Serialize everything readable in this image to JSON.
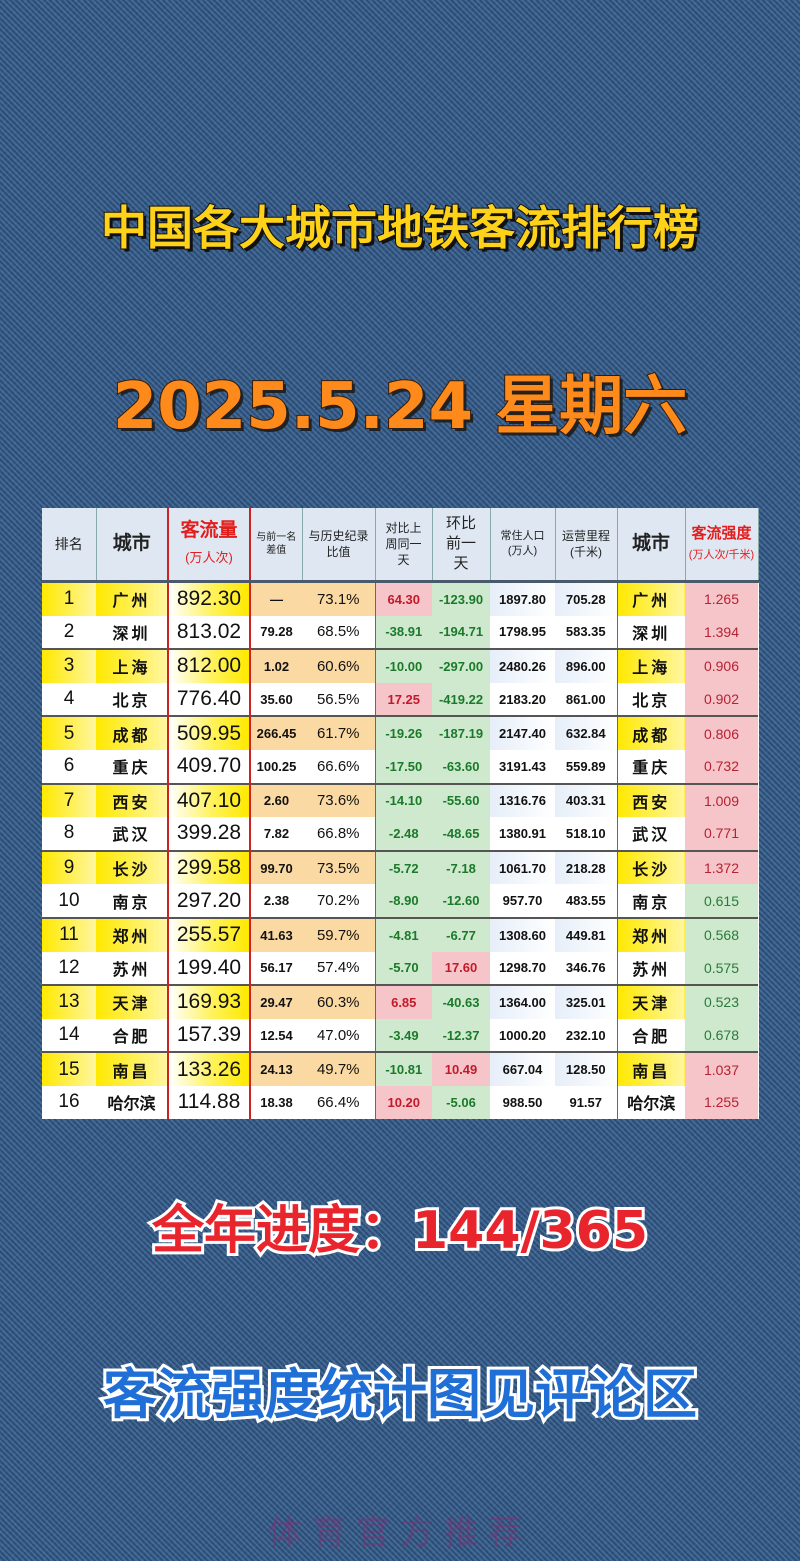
{
  "title": "中国各大城市地铁客流排行榜",
  "date": "2025.5.24 星期六",
  "table": {
    "headers": {
      "rank": "排名",
      "city": "城市",
      "flow": "客流量",
      "flow_unit": "(万人次)",
      "diff": "与前一名差值",
      "ratio": "与历史纪录比值",
      "wow": "对比上周同一天",
      "dod": "环比前一天",
      "pop": "常住人口(万人)",
      "length": "运营里程(千米)",
      "city2": "城市",
      "intensity": "客流强度",
      "intensity_unit": "(万人次/千米)"
    },
    "rows": [
      {
        "rank": "1",
        "city": "广州",
        "flow": "892.30",
        "diff": "—",
        "ratio": "73.1%",
        "wow": "64.30",
        "dod": "-123.90",
        "pop": "1897.80",
        "length": "705.28",
        "intensity": "1.265"
      },
      {
        "rank": "2",
        "city": "深圳",
        "flow": "813.02",
        "diff": "79.28",
        "ratio": "68.5%",
        "wow": "-38.91",
        "dod": "-194.71",
        "pop": "1798.95",
        "length": "583.35",
        "intensity": "1.394"
      },
      {
        "rank": "3",
        "city": "上海",
        "flow": "812.00",
        "diff": "1.02",
        "ratio": "60.6%",
        "wow": "-10.00",
        "dod": "-297.00",
        "pop": "2480.26",
        "length": "896.00",
        "intensity": "0.906"
      },
      {
        "rank": "4",
        "city": "北京",
        "flow": "776.40",
        "diff": "35.60",
        "ratio": "56.5%",
        "wow": "17.25",
        "dod": "-419.22",
        "pop": "2183.20",
        "length": "861.00",
        "intensity": "0.902"
      },
      {
        "rank": "5",
        "city": "成都",
        "flow": "509.95",
        "diff": "266.45",
        "ratio": "61.7%",
        "wow": "-19.26",
        "dod": "-187.19",
        "pop": "2147.40",
        "length": "632.84",
        "intensity": "0.806"
      },
      {
        "rank": "6",
        "city": "重庆",
        "flow": "409.70",
        "diff": "100.25",
        "ratio": "66.6%",
        "wow": "-17.50",
        "dod": "-63.60",
        "pop": "3191.43",
        "length": "559.89",
        "intensity": "0.732"
      },
      {
        "rank": "7",
        "city": "西安",
        "flow": "407.10",
        "diff": "2.60",
        "ratio": "73.6%",
        "wow": "-14.10",
        "dod": "-55.60",
        "pop": "1316.76",
        "length": "403.31",
        "intensity": "1.009"
      },
      {
        "rank": "8",
        "city": "武汉",
        "flow": "399.28",
        "diff": "7.82",
        "ratio": "66.8%",
        "wow": "-2.48",
        "dod": "-48.65",
        "pop": "1380.91",
        "length": "518.10",
        "intensity": "0.771"
      },
      {
        "rank": "9",
        "city": "长沙",
        "flow": "299.58",
        "diff": "99.70",
        "ratio": "73.5%",
        "wow": "-5.72",
        "dod": "-7.18",
        "pop": "1061.70",
        "length": "218.28",
        "intensity": "1.372"
      },
      {
        "rank": "10",
        "city": "南京",
        "flow": "297.20",
        "diff": "2.38",
        "ratio": "70.2%",
        "wow": "-8.90",
        "dod": "-12.60",
        "pop": "957.70",
        "length": "483.55",
        "intensity": "0.615"
      },
      {
        "rank": "11",
        "city": "郑州",
        "flow": "255.57",
        "diff": "41.63",
        "ratio": "59.7%",
        "wow": "-4.81",
        "dod": "-6.77",
        "pop": "1308.60",
        "length": "449.81",
        "intensity": "0.568"
      },
      {
        "rank": "12",
        "city": "苏州",
        "flow": "199.40",
        "diff": "56.17",
        "ratio": "57.4%",
        "wow": "-5.70",
        "dod": "17.60",
        "pop": "1298.70",
        "length": "346.76",
        "intensity": "0.575"
      },
      {
        "rank": "13",
        "city": "天津",
        "flow": "169.93",
        "diff": "29.47",
        "ratio": "60.3%",
        "wow": "6.85",
        "dod": "-40.63",
        "pop": "1364.00",
        "length": "325.01",
        "intensity": "0.523"
      },
      {
        "rank": "14",
        "city": "合肥",
        "flow": "157.39",
        "diff": "12.54",
        "ratio": "47.0%",
        "wow": "-3.49",
        "dod": "-12.37",
        "pop": "1000.20",
        "length": "232.10",
        "intensity": "0.678"
      },
      {
        "rank": "15",
        "city": "南昌",
        "flow": "133.26",
        "diff": "24.13",
        "ratio": "49.7%",
        "wow": "-10.81",
        "dod": "10.49",
        "pop": "667.04",
        "length": "128.50",
        "intensity": "1.037"
      },
      {
        "rank": "16",
        "city": "哈尔滨",
        "flow": "114.88",
        "diff": "18.38",
        "ratio": "66.4%",
        "wow": "10.20",
        "dod": "-5.06",
        "pop": "988.50",
        "length": "91.57",
        "intensity": "1.255"
      }
    ]
  },
  "progress": "全年进度：144/365",
  "note": "客流强度统计图见评论区",
  "watermark": "体育官方推荐",
  "colors": {
    "positive": "#c21a2a",
    "negative": "#1a7a2a",
    "highlight": "#ffe900",
    "background": "#2e5684"
  }
}
